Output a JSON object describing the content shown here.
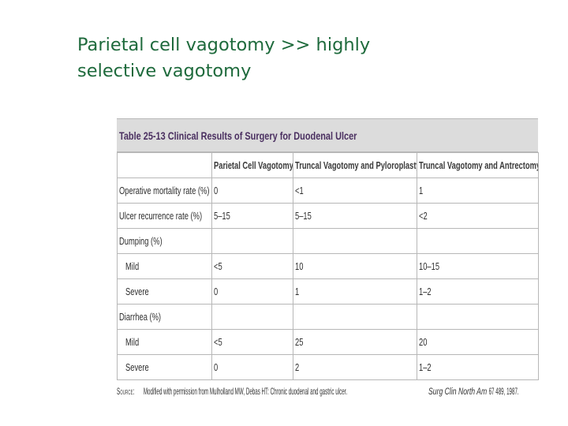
{
  "slide": {
    "title_line1": "Parietal cell vagotomy >> highly",
    "title_line2": "selective vagotomy"
  },
  "table": {
    "caption": "Table 25-13 Clinical Results of Surgery for Duodenal Ulcer",
    "headers": [
      "",
      "Parietal Cell Vagotomy",
      "Truncal Vagotomy and Pyloroplasty",
      "Truncal Vagotomy and Antrectomy"
    ],
    "rows": [
      {
        "label": "Operative mortality rate (%)",
        "values": [
          "0",
          "<1",
          "1"
        ]
      },
      {
        "label": "Ulcer recurrence rate (%)",
        "values": [
          "5–15",
          "5–15",
          "<2"
        ]
      },
      {
        "label": "Dumping (%)",
        "values": [
          "",
          "",
          ""
        ]
      },
      {
        "label": "Mild",
        "values": [
          "<5",
          "10",
          "10–15"
        ]
      },
      {
        "label": "Severe",
        "values": [
          "0",
          "1",
          "1–2"
        ]
      },
      {
        "label": "Diarrhea (%)",
        "values": [
          "",
          "",
          ""
        ]
      },
      {
        "label": "Mild",
        "values": [
          "<5",
          "25",
          "20"
        ]
      },
      {
        "label": "Severe",
        "values": [
          "0",
          "2",
          "1–2"
        ]
      }
    ],
    "source_label": "Source:",
    "source_text": "Modified with permission from Mulholland MW, Debas HT: Chronic duodenal and gastric ulcer.",
    "source_journal": "Surg Clin North Am",
    "source_citation": "67 489, 1987."
  }
}
